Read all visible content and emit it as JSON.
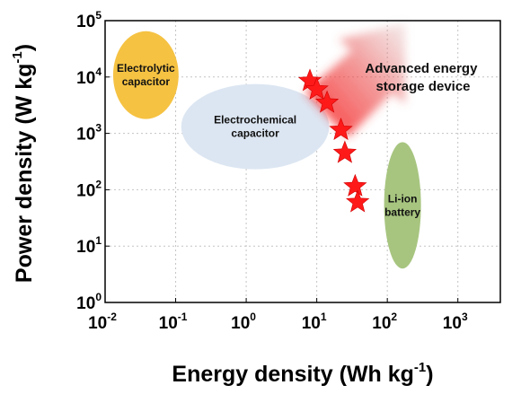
{
  "chart_data": {
    "type": "scatter",
    "x_scale": "log",
    "y_scale": "log",
    "xlim": [
      0.01,
      4000
    ],
    "ylim": [
      1,
      100000
    ],
    "grid": true,
    "xlabel": {
      "text": "Energy density (Wh kg",
      "sup": "-1",
      "close": ")"
    },
    "ylabel": {
      "text": "Power density (W kg",
      "sup": "-1",
      "close": ")"
    },
    "x_ticks": [
      {
        "base": "10",
        "exp": "-2"
      },
      {
        "base": "10",
        "exp": "-1"
      },
      {
        "base": "10",
        "exp": "0"
      },
      {
        "base": "10",
        "exp": "1"
      },
      {
        "base": "10",
        "exp": "2"
      },
      {
        "base": "10",
        "exp": "3"
      }
    ],
    "y_ticks": [
      {
        "base": "10",
        "exp": "0"
      },
      {
        "base": "10",
        "exp": "1"
      },
      {
        "base": "10",
        "exp": "2"
      },
      {
        "base": "10",
        "exp": "3"
      },
      {
        "base": "10",
        "exp": "4"
      },
      {
        "base": "10",
        "exp": "5"
      }
    ],
    "regions": [
      {
        "name": "electrolytic-capacitor",
        "lines": [
          "Electrolytic",
          "capacitor"
        ],
        "color": "#f5c242",
        "x_range": [
          0.013,
          0.11
        ],
        "y_range": [
          1800,
          65000
        ]
      },
      {
        "name": "electrochemical-capacitor",
        "lines": [
          "Electrochemical",
          "capacitor"
        ],
        "color": "#dce6f2",
        "x_range": [
          0.12,
          15
        ],
        "y_range": [
          230,
          7500
        ]
      },
      {
        "name": "li-ion-battery",
        "lines": [
          "Li-ion",
          "battery"
        ],
        "color": "#a7c57f",
        "x_range": [
          90,
          300
        ],
        "y_range": [
          4,
          700
        ]
      }
    ],
    "arrow_label": [
      "Advanced energy",
      "storage device"
    ],
    "points": {
      "marker": "star",
      "color": "#ff1a1a",
      "x": [
        8,
        10,
        14,
        22,
        25,
        35,
        38
      ],
      "y": [
        8500,
        6000,
        3500,
        1150,
        450,
        115,
        60
      ]
    }
  }
}
